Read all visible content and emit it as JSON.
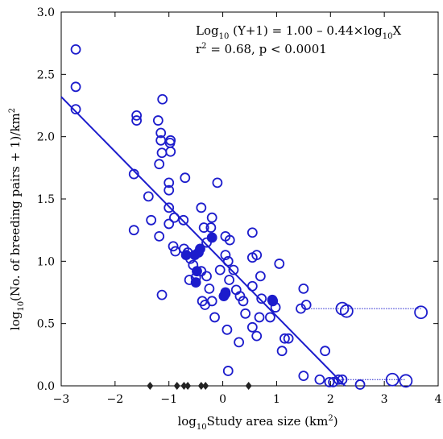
{
  "chart_data": {
    "type": "scatter",
    "xlabel_parts": [
      "log",
      "10",
      "Study area size (km",
      "2",
      ")"
    ],
    "ylabel_parts": [
      "log",
      "10",
      "(No. of breeding pairs + 1)/km",
      "2"
    ],
    "equation_parts": [
      "Log",
      "10",
      " (Y+1) = 1.00 – 0.44×log",
      "10",
      "X"
    ],
    "stats_parts": [
      "r",
      "2",
      " = 0.68, p < 0.0001"
    ],
    "xlim": [
      -3,
      4
    ],
    "ylim": [
      0,
      3
    ],
    "x_ticks": [
      -3,
      -2,
      -1,
      0,
      1,
      2,
      3,
      4
    ],
    "x_tick_labels": [
      "−3",
      "−2",
      "−1",
      "0",
      "1",
      "2",
      "3",
      "4"
    ],
    "y_ticks": [
      0,
      0.5,
      1,
      1.5,
      2,
      2.5,
      3
    ],
    "y_tick_labels": [
      "0.0",
      "0.5",
      "1.0",
      "1.5",
      "2.0",
      "2.5",
      "3.0"
    ],
    "regression": {
      "x1": -3,
      "y1": 2.32,
      "x2": 2.27,
      "y2": 0
    },
    "colors": {
      "series": "#1c1ccc",
      "diamond": "#222222",
      "axis": "#000000"
    },
    "open_points": [
      [
        -2.73,
        2.7
      ],
      [
        -2.73,
        2.4
      ],
      [
        -2.73,
        2.22
      ],
      [
        -1.6,
        2.17
      ],
      [
        -1.6,
        2.13
      ],
      [
        -1.65,
        1.7
      ],
      [
        -1.65,
        1.25
      ],
      [
        -1.38,
        1.52
      ],
      [
        -1.33,
        1.33
      ],
      [
        -1.18,
        1.2
      ],
      [
        -1.12,
        2.3
      ],
      [
        -1.2,
        2.13
      ],
      [
        -1.15,
        2.03
      ],
      [
        -1.15,
        1.97
      ],
      [
        -1.13,
        1.87
      ],
      [
        -1.18,
        1.78
      ],
      [
        -0.97,
        1.97
      ],
      [
        -0.98,
        1.95
      ],
      [
        -0.97,
        1.88
      ],
      [
        -1.0,
        1.63
      ],
      [
        -1.0,
        1.57
      ],
      [
        -1.0,
        1.43
      ],
      [
        -1.0,
        1.3
      ],
      [
        -0.9,
        1.35
      ],
      [
        -0.92,
        1.12
      ],
      [
        -0.88,
        1.08
      ],
      [
        -1.13,
        0.73
      ],
      [
        -0.7,
        1.67
      ],
      [
        -0.73,
        1.33
      ],
      [
        -0.72,
        1.1
      ],
      [
        -0.65,
        1.07
      ],
      [
        -0.6,
        1.02
      ],
      [
        -0.55,
        0.97
      ],
      [
        -0.62,
        0.85
      ],
      [
        -0.5,
        0.87
      ],
      [
        -0.4,
        1.43
      ],
      [
        -0.35,
        1.27
      ],
      [
        -0.3,
        1.15
      ],
      [
        -0.2,
        1.35
      ],
      [
        -0.22,
        1.27
      ],
      [
        -0.4,
        0.92
      ],
      [
        -0.3,
        0.88
      ],
      [
        -0.25,
        0.78
      ],
      [
        -0.38,
        0.68
      ],
      [
        -0.33,
        0.65
      ],
      [
        -0.2,
        0.68
      ],
      [
        -0.1,
        1.63
      ],
      [
        0.05,
        1.2
      ],
      [
        0.13,
        1.17
      ],
      [
        0.05,
        1.05
      ],
      [
        -0.05,
        0.93
      ],
      [
        0.1,
        1.0
      ],
      [
        0.2,
        0.93
      ],
      [
        0.12,
        0.85
      ],
      [
        0.05,
        0.75
      ],
      [
        0.25,
        0.77
      ],
      [
        0.32,
        0.72
      ],
      [
        0.38,
        0.68
      ],
      [
        0.42,
        0.58
      ],
      [
        -0.15,
        0.55
      ],
      [
        0.55,
        1.23
      ],
      [
        0.63,
        1.05
      ],
      [
        0.55,
        1.03
      ],
      [
        0.7,
        0.88
      ],
      [
        0.55,
        0.8
      ],
      [
        0.72,
        0.7
      ],
      [
        0.68,
        0.55
      ],
      [
        0.55,
        0.47
      ],
      [
        0.63,
        0.4
      ],
      [
        0.08,
        0.45
      ],
      [
        0.3,
        0.35
      ],
      [
        0.1,
        0.12
      ],
      [
        1.05,
        0.98
      ],
      [
        0.93,
        0.68
      ],
      [
        0.98,
        0.63
      ],
      [
        0.88,
        0.55
      ],
      [
        1.15,
        0.38
      ],
      [
        1.22,
        0.38
      ],
      [
        1.1,
        0.28
      ],
      [
        1.45,
        0.62
      ],
      [
        1.55,
        0.65
      ],
      [
        1.5,
        0.78
      ],
      [
        1.9,
        0.28
      ],
      [
        1.5,
        0.08
      ],
      [
        1.8,
        0.05
      ],
      [
        1.98,
        0.03
      ],
      [
        2.05,
        0.03
      ],
      [
        2.15,
        0.05
      ],
      [
        2.22,
        0.05
      ],
      [
        2.55,
        0.01
      ]
    ],
    "filled_points": [
      [
        -0.68,
        1.05
      ],
      [
        -0.52,
        1.05
      ],
      [
        -0.45,
        1.07
      ],
      [
        -0.42,
        1.1
      ],
      [
        -0.48,
        0.92
      ],
      [
        -0.5,
        0.83
      ],
      [
        -0.2,
        1.19
      ],
      [
        0.02,
        0.72
      ],
      [
        0.05,
        0.74
      ],
      [
        0.92,
        0.69
      ]
    ],
    "large_points": [
      [
        2.22,
        0.62
      ],
      [
        2.3,
        0.6
      ],
      [
        3.68,
        0.59
      ],
      [
        3.15,
        0.05
      ],
      [
        3.4,
        0.04
      ]
    ],
    "ranges": [
      {
        "x1": 1.55,
        "x2": 3.68,
        "y": 0.62
      },
      {
        "x1": 2.1,
        "x2": 3.38,
        "y": 0.05
      }
    ],
    "diamonds": [
      -1.35,
      -0.85,
      -0.72,
      -0.65,
      -0.4,
      -0.32,
      0.48
    ]
  }
}
